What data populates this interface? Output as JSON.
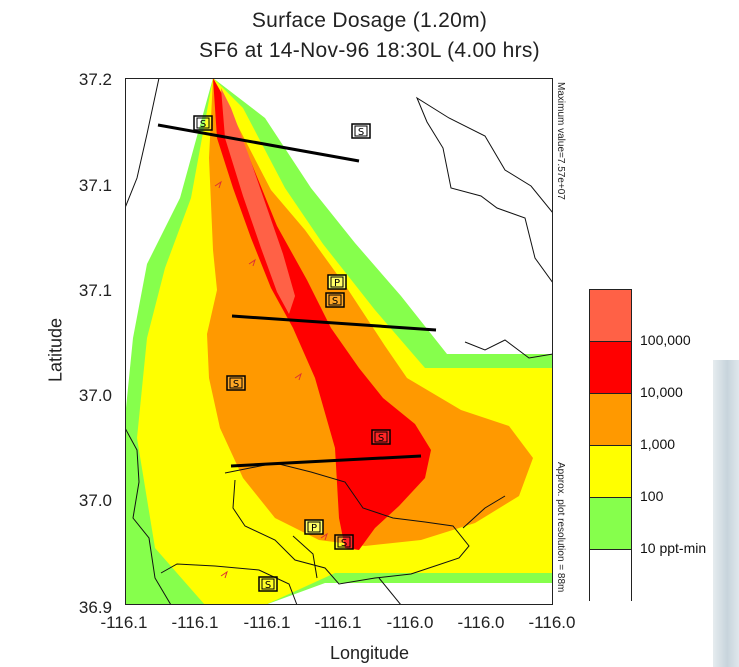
{
  "chart_data": {
    "type": "heatmap",
    "title": "Surface Dosage (1.20m)",
    "subtitle": "SF6 at 14-Nov-96 18:30L (4.00 hrs)",
    "xlabel": "Longitude",
    "ylabel": "Latitude",
    "x_ticks": [
      "-116.1",
      "-116.1",
      "-116.1",
      "-116.1",
      "-116.0",
      "-116.0",
      "-116.0"
    ],
    "y_ticks": [
      "37.2",
      "37.1",
      "37.1",
      "37.0",
      "37.0",
      "36.9"
    ],
    "legend": {
      "placement": "right",
      "levels": [
        {
          "label": "100,000",
          "color": "#ff6146"
        },
        {
          "label": "10,000",
          "color": "#ff0000"
        },
        {
          "label": "1,000",
          "color": "#ff9900"
        },
        {
          "label": "100",
          "color": "#ffff00"
        },
        {
          "label": "10 ppt-min",
          "color": "#86ff4c"
        },
        {
          "label": "",
          "color": "#ffffff"
        }
      ]
    },
    "annotations": {
      "max_value": "Maximum value=7.57e+07",
      "resolution": "Approx. plot resolution = 88m"
    },
    "station_markers": [
      "S",
      "S",
      "P",
      "S",
      "S",
      "S",
      "P",
      "S",
      "S"
    ]
  }
}
